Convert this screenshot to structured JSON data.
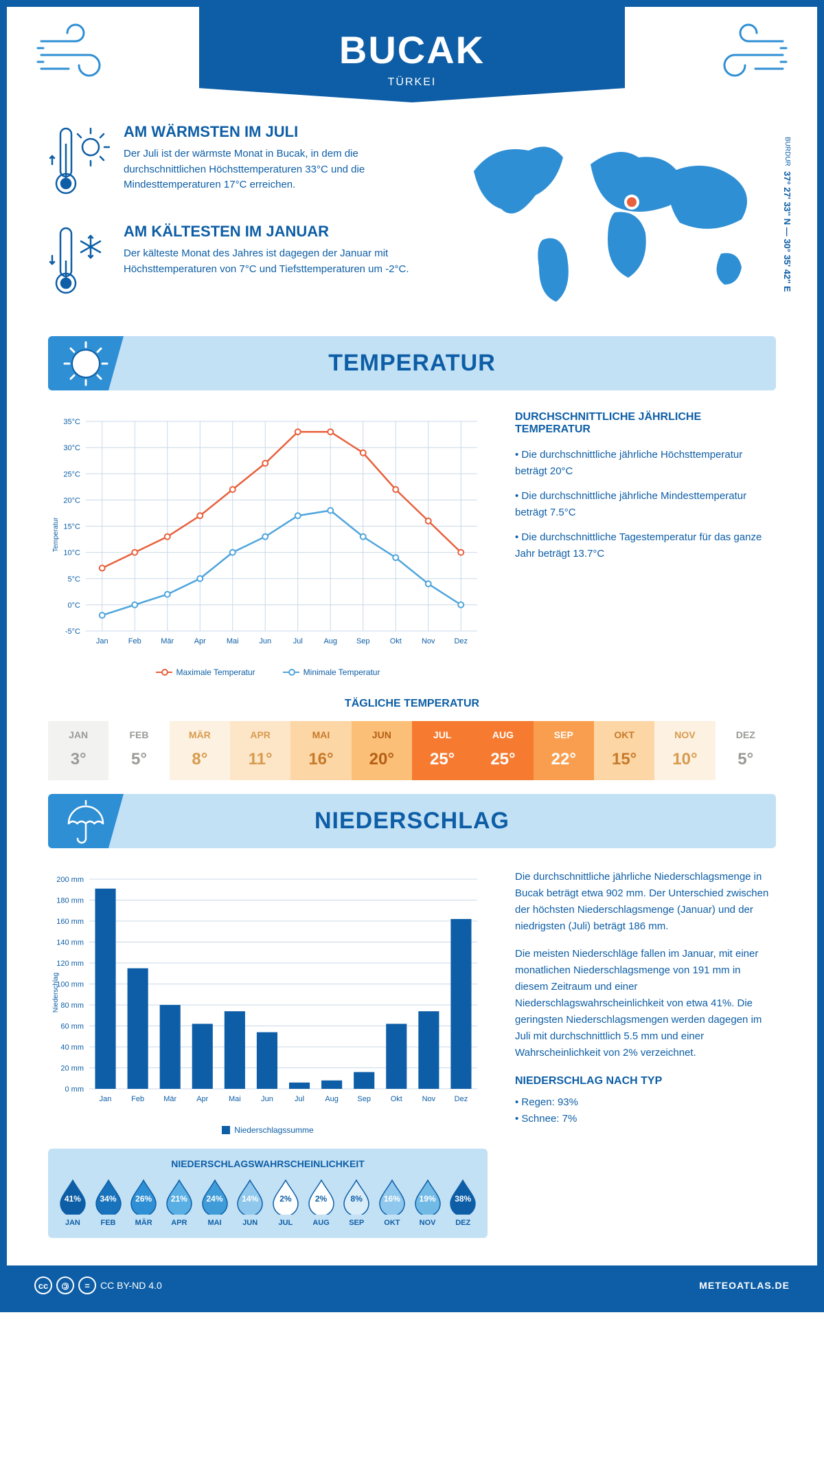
{
  "header": {
    "title": "BUCAK",
    "subtitle": "TÜRKEI"
  },
  "coords": {
    "main": "37° 27' 33'' N — 30° 35' 42'' E",
    "region": "BURDUR"
  },
  "facts": {
    "warm": {
      "title": "AM WÄRMSTEN IM JULI",
      "text": "Der Juli ist der wärmste Monat in Bucak, in dem die durchschnittlichen Höchsttemperaturen 33°C und die Mindesttemperaturen 17°C erreichen."
    },
    "cold": {
      "title": "AM KÄLTESTEN IM JANUAR",
      "text": "Der kälteste Monat des Jahres ist dagegen der Januar mit Höchsttemperaturen von 7°C und Tiefsttemperaturen um -2°C."
    }
  },
  "sections": {
    "temp": "TEMPERATUR",
    "precip": "NIEDERSCHLAG"
  },
  "temp_chart": {
    "months": [
      "Jan",
      "Feb",
      "Mär",
      "Apr",
      "Mai",
      "Jun",
      "Jul",
      "Aug",
      "Sep",
      "Okt",
      "Nov",
      "Dez"
    ],
    "max": [
      7,
      10,
      13,
      17,
      22,
      27,
      33,
      33,
      29,
      22,
      16,
      10
    ],
    "min": [
      -2,
      0,
      2,
      5,
      10,
      13,
      17,
      18,
      13,
      9,
      4,
      0
    ],
    "ylim": [
      -5,
      35
    ],
    "ytick": 5,
    "ylabel": "Temperatur",
    "max_color": "#e8603c",
    "min_color": "#4fa5dd",
    "grid_color": "#c9d8e8",
    "axis_color": "#0d5ea6",
    "legend_max": "Maximale Temperatur",
    "legend_min": "Minimale Temperatur"
  },
  "temp_info": {
    "title": "DURCHSCHNITTLICHE JÄHRLICHE TEMPERATUR",
    "items": [
      "Die durchschnittliche jährliche Höchsttemperatur beträgt 20°C",
      "Die durchschnittliche jährliche Mindesttemperatur beträgt 7.5°C",
      "Die durchschnittliche Tagestemperatur für das ganze Jahr beträgt 13.7°C"
    ]
  },
  "daily": {
    "title": "TÄGLICHE TEMPERATUR",
    "months": [
      "JAN",
      "FEB",
      "MÄR",
      "APR",
      "MAI",
      "JUN",
      "JUL",
      "AUG",
      "SEP",
      "OKT",
      "NOV",
      "DEZ"
    ],
    "values": [
      "3°",
      "5°",
      "8°",
      "11°",
      "16°",
      "20°",
      "25°",
      "25°",
      "22°",
      "15°",
      "10°",
      "5°"
    ],
    "bg": [
      "#f2f2f0",
      "#ffffff",
      "#fdf1e1",
      "#fde6c8",
      "#fcd6a5",
      "#fbbf78",
      "#f67a2f",
      "#f67a2f",
      "#f99e4e",
      "#fcd6a5",
      "#fdf1e1",
      "#ffffff"
    ],
    "fg": [
      "#9a9a96",
      "#9a9a96",
      "#d89b4e",
      "#d89b4e",
      "#c77a2a",
      "#b55f15",
      "#ffffff",
      "#ffffff",
      "#ffffff",
      "#c77a2a",
      "#d89b4e",
      "#9a9a96"
    ]
  },
  "precip_chart": {
    "months": [
      "Jan",
      "Feb",
      "Mär",
      "Apr",
      "Mai",
      "Jun",
      "Jul",
      "Aug",
      "Sep",
      "Okt",
      "Nov",
      "Dez"
    ],
    "values": [
      191,
      115,
      80,
      62,
      74,
      54,
      6,
      8,
      16,
      62,
      74,
      162
    ],
    "ylim": [
      0,
      200
    ],
    "ytick": 20,
    "ylabel": "Niederschlag",
    "bar_color": "#0d5ea6",
    "grid_color": "#c9d8e8",
    "axis_color": "#0d5ea6",
    "legend": "Niederschlagssumme"
  },
  "precip_text": {
    "p1": "Die durchschnittliche jährliche Niederschlagsmenge in Bucak beträgt etwa 902 mm. Der Unterschied zwischen der höchsten Niederschlagsmenge (Januar) und der niedrigsten (Juli) beträgt 186 mm.",
    "p2": "Die meisten Niederschläge fallen im Januar, mit einer monatlichen Niederschlagsmenge von 191 mm in diesem Zeitraum und einer Niederschlagswahrscheinlichkeit von etwa 41%. Die geringsten Niederschlagsmengen werden dagegen im Juli mit durchschnittlich 5.5 mm und einer Wahrscheinlichkeit von 2% verzeichnet.",
    "type_title": "NIEDERSCHLAG NACH TYP",
    "types": [
      "Regen: 93%",
      "Schnee: 7%"
    ]
  },
  "prob": {
    "title": "NIEDERSCHLAGSWAHRSCHEINLICHKEIT",
    "months": [
      "JAN",
      "FEB",
      "MÄR",
      "APR",
      "MAI",
      "JUN",
      "JUL",
      "AUG",
      "SEP",
      "OKT",
      "NOV",
      "DEZ"
    ],
    "values": [
      "41%",
      "34%",
      "26%",
      "21%",
      "24%",
      "14%",
      "2%",
      "2%",
      "8%",
      "16%",
      "19%",
      "38%"
    ],
    "fill": [
      "#0d5ea6",
      "#1972bc",
      "#2f8fd4",
      "#59aee3",
      "#3f9cd9",
      "#8fc8ec",
      "#ffffff",
      "#ffffff",
      "#d9edf9",
      "#8fc8ec",
      "#72bae6",
      "#0d5ea6"
    ],
    "text": [
      "#ffffff",
      "#ffffff",
      "#ffffff",
      "#ffffff",
      "#ffffff",
      "#ffffff",
      "#0d5ea6",
      "#0d5ea6",
      "#0d5ea6",
      "#ffffff",
      "#ffffff",
      "#ffffff"
    ]
  },
  "footer": {
    "license": "CC BY-ND 4.0",
    "site": "METEOATLAS.DE"
  }
}
